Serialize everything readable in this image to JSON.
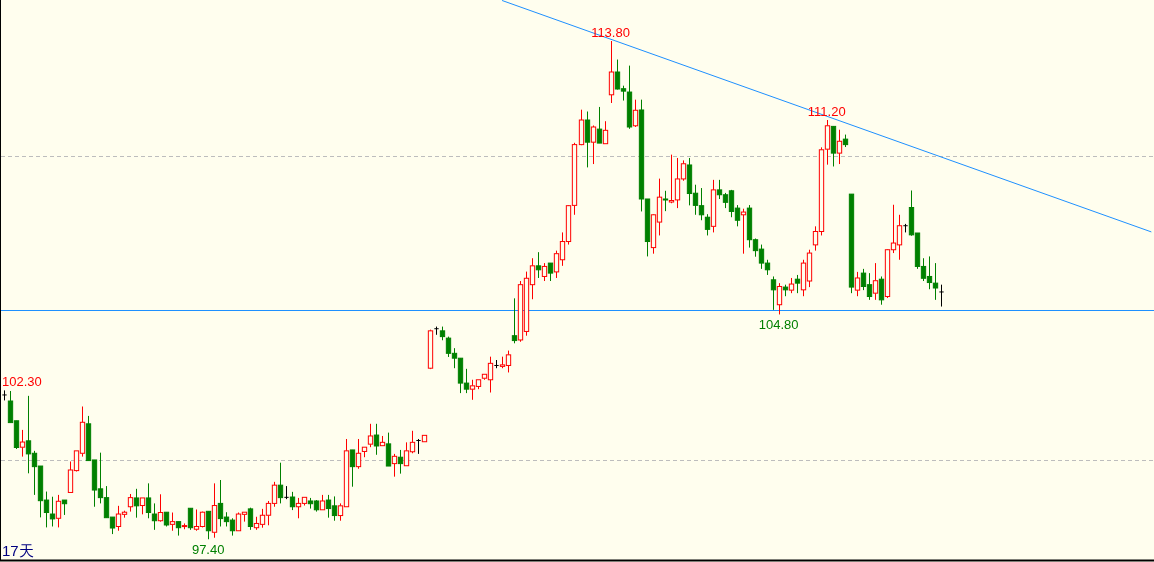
{
  "chart_data": {
    "type": "candlestick",
    "categories": [
      null,
      null,
      null,
      null,
      null,
      null,
      null,
      null,
      null,
      null,
      null,
      null,
      null,
      null,
      null,
      null,
      null,
      null,
      null,
      null,
      null,
      null,
      null,
      null,
      null,
      null,
      null,
      null,
      null,
      null,
      null,
      null,
      null,
      null,
      null,
      null,
      null,
      null,
      null,
      null,
      null,
      null,
      null,
      null,
      null,
      null,
      null,
      null,
      null,
      null,
      null,
      null,
      null,
      null,
      null,
      null,
      null,
      null,
      null,
      null,
      null,
      null,
      null,
      null,
      null,
      null,
      null,
      null,
      null,
      null,
      null,
      null,
      null,
      null,
      null,
      null,
      null,
      null,
      null,
      null,
      null,
      null,
      null,
      null,
      null,
      null,
      null,
      null,
      null,
      null,
      null,
      null,
      null,
      null,
      null,
      null,
      null,
      null,
      null,
      null,
      null,
      null,
      null,
      null,
      null,
      null,
      null,
      null,
      null,
      null,
      null,
      null,
      null,
      null,
      null,
      null,
      null,
      null,
      null,
      null,
      null,
      null,
      null,
      null,
      null,
      null,
      null,
      null,
      null,
      null,
      null,
      null,
      null,
      null,
      null,
      null,
      null,
      null,
      null,
      null,
      null,
      null,
      null,
      null,
      null,
      null,
      null,
      null,
      null,
      null,
      null,
      null,
      null,
      null,
      null,
      null,
      null,
      null,
      null,
      null,
      null,
      null,
      null,
      null,
      null,
      null,
      null,
      null,
      null,
      null,
      null,
      null,
      null,
      null,
      null,
      null,
      null,
      null,
      null,
      null,
      null,
      null,
      null,
      null,
      null,
      null,
      null,
      null,
      null,
      null,
      null,
      null
    ],
    "ohlc": [
      [
        102.15,
        102.3,
        101.97,
        102.15
      ],
      [
        101.95,
        102.28,
        101.24,
        101.24
      ],
      [
        101.3,
        101.3,
        100.37,
        100.42
      ],
      [
        100.43,
        101.0,
        100.12,
        100.6
      ],
      [
        100.64,
        102.12,
        99.57,
        100.21
      ],
      [
        100.23,
        100.31,
        98.86,
        99.79
      ],
      [
        99.81,
        99.81,
        98.12,
        98.67
      ],
      [
        98.69,
        98.97,
        97.79,
        98.28
      ],
      [
        98.23,
        98.8,
        97.82,
        98.07
      ],
      [
        98.09,
        98.86,
        97.79,
        98.65
      ],
      [
        98.69,
        98.69,
        98.2,
        98.57
      ],
      [
        98.94,
        99.96,
        98.94,
        99.68
      ],
      [
        99.66,
        100.31,
        99.63,
        100.31
      ],
      [
        100.23,
        101.77,
        100.12,
        101.25
      ],
      [
        101.2,
        101.46,
        99.99,
        99.99
      ],
      [
        100.01,
        100.01,
        98.47,
        99.02
      ],
      [
        99.06,
        100.25,
        98.58,
        98.77
      ],
      [
        98.77,
        99.15,
        98.11,
        98.11
      ],
      [
        98.13,
        98.13,
        97.57,
        97.77
      ],
      [
        97.82,
        98.5,
        97.68,
        98.23
      ],
      [
        98.22,
        98.34,
        98.11,
        98.29
      ],
      [
        98.47,
        98.89,
        98.31,
        98.77
      ],
      [
        98.76,
        99.06,
        98.11,
        98.5
      ],
      [
        98.51,
        98.76,
        98.22,
        98.76
      ],
      [
        98.76,
        99.24,
        98.09,
        98.28
      ],
      [
        98.23,
        98.58,
        97.71,
        98.01
      ],
      [
        98.01,
        98.88,
        97.98,
        98.28
      ],
      [
        98.29,
        98.29,
        97.82,
        97.87
      ],
      [
        97.89,
        98.28,
        97.68,
        97.98
      ],
      [
        97.98,
        97.98,
        97.52,
        97.78
      ],
      [
        97.82,
        97.92,
        97.73,
        97.85
      ],
      [
        98.42,
        98.42,
        97.71,
        97.78
      ],
      [
        97.73,
        98.38,
        97.68,
        97.82
      ],
      [
        97.82,
        98.31,
        97.79,
        98.29
      ],
      [
        98.32,
        98.32,
        97.4,
        97.68
      ],
      [
        97.63,
        99.24,
        97.45,
        98.51
      ],
      [
        98.58,
        99.35,
        97.82,
        98.08
      ],
      [
        98.13,
        98.29,
        97.82,
        97.98
      ],
      [
        98.03,
        98.09,
        97.52,
        97.68
      ],
      [
        97.68,
        98.28,
        97.68,
        98.23
      ],
      [
        98.22,
        98.29,
        97.98,
        98.29
      ],
      [
        98.4,
        98.44,
        97.71,
        97.82
      ],
      [
        97.78,
        98.14,
        97.71,
        97.92
      ],
      [
        97.89,
        98.4,
        97.78,
        98.19
      ],
      [
        98.19,
        98.66,
        97.86,
        98.58
      ],
      [
        98.58,
        99.29,
        98.47,
        99.18
      ],
      [
        99.18,
        99.92,
        98.58,
        98.77
      ],
      [
        98.78,
        99.15,
        98.72,
        98.78
      ],
      [
        98.79,
        98.96,
        98.36,
        98.47
      ],
      [
        98.47,
        98.76,
        98.09,
        98.58
      ],
      [
        98.58,
        98.78,
        98.51,
        98.78
      ],
      [
        98.66,
        98.76,
        98.41,
        98.57
      ],
      [
        98.66,
        98.69,
        98.31,
        98.37
      ],
      [
        98.37,
        98.86,
        98.37,
        98.66
      ],
      [
        98.69,
        98.86,
        98.11,
        98.41
      ],
      [
        98.5,
        98.81,
        98.01,
        98.18
      ],
      [
        98.18,
        98.58,
        98.01,
        98.5
      ],
      [
        98.47,
        100.7,
        98.47,
        100.31
      ],
      [
        100.34,
        100.34,
        99.13,
        99.79
      ],
      [
        99.79,
        100.7,
        99.72,
        100.23
      ],
      [
        100.29,
        100.43,
        100.1,
        100.43
      ],
      [
        100.53,
        101.2,
        100.43,
        100.8
      ],
      [
        100.83,
        101.2,
        100.18,
        100.47
      ],
      [
        100.48,
        100.8,
        100.48,
        100.59
      ],
      [
        100.54,
        100.91,
        99.81,
        99.81
      ],
      [
        99.89,
        100.21,
        99.46,
        100.13
      ],
      [
        100.1,
        100.34,
        99.56,
        99.89
      ],
      [
        99.82,
        100.59,
        99.82,
        100.31
      ],
      [
        100.28,
        100.97,
        100.23,
        100.59
      ],
      [
        100.65,
        100.7,
        100.21,
        100.65
      ],
      [
        100.61,
        100.82,
        100.61,
        100.82
      ],
      [
        103.03,
        104.3,
        103.0,
        104.26
      ],
      [
        104.33,
        104.4,
        104.13,
        104.33
      ],
      [
        104.26,
        104.4,
        103.95,
        104.07
      ],
      [
        104.02,
        104.07,
        103.4,
        103.52
      ],
      [
        103.52,
        103.69,
        103.03,
        103.36
      ],
      [
        103.36,
        103.36,
        102.21,
        102.54
      ],
      [
        102.54,
        103.01,
        102.21,
        102.34
      ],
      [
        102.34,
        102.65,
        101.99,
        102.45
      ],
      [
        102.43,
        102.65,
        102.34,
        102.65
      ],
      [
        102.7,
        102.83,
        102.65,
        102.83
      ],
      [
        102.65,
        103.41,
        102.23,
        103.19
      ],
      [
        103.12,
        103.3,
        103.03,
        103.12
      ],
      [
        103.09,
        103.41,
        103.03,
        103.14
      ],
      [
        103.12,
        103.61,
        102.89,
        103.47
      ],
      [
        104.1,
        105.33,
        103.85,
        103.94
      ],
      [
        103.96,
        105.9,
        103.9,
        105.78
      ],
      [
        104.24,
        106.21,
        104.1,
        105.99
      ],
      [
        105.78,
        106.65,
        105.3,
        106.4
      ],
      [
        106.4,
        106.85,
        106.0,
        106.27
      ],
      [
        106.05,
        106.49,
        105.9,
        106.38
      ],
      [
        106.49,
        106.49,
        105.9,
        106.16
      ],
      [
        106.2,
        106.9,
        106.0,
        106.8
      ],
      [
        106.6,
        107.5,
        106.4,
        107.2
      ],
      [
        107.2,
        108.4,
        107.1,
        108.38
      ],
      [
        108.39,
        110.45,
        108.08,
        110.39
      ],
      [
        110.39,
        111.54,
        110.37,
        111.2
      ],
      [
        111.2,
        111.48,
        109.64,
        110.47
      ],
      [
        110.47,
        111.02,
        109.75,
        110.97
      ],
      [
        110.9,
        111.63,
        110.44,
        110.44
      ],
      [
        110.42,
        111.16,
        110.42,
        110.86
      ],
      [
        112.03,
        113.8,
        111.76,
        112.78
      ],
      [
        112.78,
        113.19,
        112.2,
        112.22
      ],
      [
        112.23,
        112.33,
        111.84,
        112.15
      ],
      [
        112.12,
        112.99,
        110.91,
        110.97
      ],
      [
        111.01,
        111.87,
        110.97,
        111.52
      ],
      [
        111.53,
        111.87,
        108.19,
        108.6
      ],
      [
        108.6,
        108.6,
        106.71,
        107.2
      ],
      [
        107.0,
        108.1,
        106.8,
        108.08
      ],
      [
        107.84,
        109.27,
        107.4,
        108.66
      ],
      [
        108.6,
        108.87,
        108.2,
        108.57
      ],
      [
        108.5,
        110.06,
        108.46,
        108.55
      ],
      [
        108.57,
        109.95,
        108.3,
        109.26
      ],
      [
        109.26,
        109.87,
        109.2,
        109.76
      ],
      [
        109.72,
        109.95,
        108.39,
        108.78
      ],
      [
        108.79,
        109.07,
        108.08,
        108.39
      ],
      [
        108.38,
        108.96,
        107.9,
        108.08
      ],
      [
        108.0,
        108.1,
        107.4,
        107.6
      ],
      [
        107.7,
        109.23,
        107.5,
        108.9
      ],
      [
        108.9,
        109.23,
        108.6,
        108.74
      ],
      [
        108.74,
        108.8,
        108.3,
        108.49
      ],
      [
        108.87,
        108.9,
        108.0,
        108.19
      ],
      [
        108.3,
        108.4,
        107.7,
        107.9
      ],
      [
        108.08,
        108.28,
        106.8,
        108.17
      ],
      [
        108.3,
        108.4,
        107.0,
        107.26
      ],
      [
        107.26,
        107.3,
        106.7,
        106.9
      ],
      [
        106.95,
        107.1,
        106.3,
        106.49
      ],
      [
        106.49,
        106.6,
        106.1,
        106.27
      ],
      [
        105.94,
        106.05,
        104.95,
        105.61
      ],
      [
        105.12,
        105.83,
        104.8,
        105.72
      ],
      [
        105.7,
        105.78,
        105.4,
        105.61
      ],
      [
        105.6,
        106.0,
        105.5,
        105.8
      ],
      [
        105.96,
        106.1,
        105.5,
        105.83
      ],
      [
        105.61,
        106.6,
        105.4,
        106.49
      ],
      [
        105.9,
        106.93,
        105.7,
        106.82
      ],
      [
        107.09,
        107.7,
        106.9,
        107.53
      ],
      [
        107.53,
        110.3,
        107.4,
        110.22
      ],
      [
        110.24,
        111.2,
        109.73,
        111.01
      ],
      [
        110.99,
        111.0,
        109.67,
        110.11
      ],
      [
        110.11,
        110.88,
        109.75,
        110.5
      ],
      [
        110.57,
        110.72,
        110.31,
        110.39
      ],
      [
        108.76,
        108.76,
        105.5,
        105.7
      ],
      [
        105.6,
        106.2,
        105.4,
        106.0
      ],
      [
        106.16,
        106.3,
        105.6,
        105.72
      ],
      [
        105.78,
        106.16,
        105.28,
        105.39
      ],
      [
        105.5,
        106.49,
        105.28,
        105.91
      ],
      [
        105.96,
        106.05,
        105.12,
        105.28
      ],
      [
        105.39,
        106.95,
        105.34,
        106.93
      ],
      [
        106.93,
        108.41,
        106.82,
        107.15
      ],
      [
        107.09,
        108.08,
        106.6,
        107.72
      ],
      [
        107.72,
        107.78,
        107.5,
        107.72
      ],
      [
        108.32,
        108.88,
        107.39,
        107.42
      ],
      [
        107.48,
        107.48,
        106.3,
        106.38
      ],
      [
        106.38,
        106.65,
        105.9,
        105.99
      ],
      [
        106.05,
        106.71,
        105.63,
        105.85
      ],
      [
        105.83,
        106.49,
        105.28,
        105.67
      ],
      [
        105.54,
        105.78,
        105.06,
        105.54
      ],
      null,
      null,
      null,
      null,
      null,
      null,
      null,
      null,
      null,
      null,
      null,
      null,
      null,
      null,
      null,
      null,
      null,
      null,
      null,
      null,
      null,
      null,
      null,
      null,
      null,
      null,
      null,
      null,
      null,
      null,
      null,
      null,
      null,
      null,
      null
    ],
    "colors": [
      "#000000",
      "#008000",
      "#008000",
      "#ff0000",
      "#008000",
      "#008000",
      "#008000",
      "#008000",
      "#008000",
      "#ff0000",
      "#008000",
      "#ff0000",
      "#ff0000",
      "#ff0000",
      "#008000",
      "#008000",
      "#008000",
      "#008000",
      "#008000",
      "#ff0000",
      "#ff0000",
      "#ff0000",
      "#008000",
      "#ff0000",
      "#008000",
      "#008000",
      "#ff0000",
      "#008000",
      "#ff0000",
      "#008000",
      "#ff0000",
      "#008000",
      "#ff0000",
      "#ff0000",
      "#008000",
      "#ff0000",
      "#008000",
      "#008000",
      "#008000",
      "#ff0000",
      "#ff0000",
      "#008000",
      "#ff0000",
      "#ff0000",
      "#ff0000",
      "#ff0000",
      "#008000",
      "#000000",
      "#008000",
      "#ff0000",
      "#ff0000",
      "#008000",
      "#008000",
      "#ff0000",
      "#008000",
      "#008000",
      "#ff0000",
      "#ff0000",
      "#008000",
      "#ff0000",
      "#ff0000",
      "#ff0000",
      "#008000",
      "#ff0000",
      "#008000",
      "#ff0000",
      "#008000",
      "#ff0000",
      "#ff0000",
      "#000000",
      "#ff0000",
      "#ff0000",
      "#000000",
      "#008000",
      "#008000",
      "#008000",
      "#008000",
      "#008000",
      "#ff0000",
      "#ff0000",
      "#ff0000",
      "#ff0000",
      "#000000",
      "#ff0000",
      "#ff0000",
      "#008000",
      "#ff0000",
      "#ff0000",
      "#ff0000",
      "#008000",
      "#ff0000",
      "#008000",
      "#ff0000",
      "#ff0000",
      "#ff0000",
      "#ff0000",
      "#ff0000",
      "#008000",
      "#ff0000",
      "#008000",
      "#ff0000",
      "#ff0000",
      "#008000",
      "#008000",
      "#008000",
      "#ff0000",
      "#008000",
      "#008000",
      "#ff0000",
      "#ff0000",
      "#008000",
      "#ff0000",
      "#ff0000",
      "#ff0000",
      "#008000",
      "#008000",
      "#008000",
      "#008000",
      "#ff0000",
      "#008000",
      "#008000",
      "#008000",
      "#008000",
      "#ff0000",
      "#008000",
      "#008000",
      "#008000",
      "#008000",
      "#008000",
      "#ff0000",
      "#008000",
      "#ff0000",
      "#008000",
      "#ff0000",
      "#ff0000",
      "#ff0000",
      "#ff0000",
      "#ff0000",
      "#008000",
      "#ff0000",
      "#008000",
      "#008000",
      "#ff0000",
      "#008000",
      "#008000",
      "#ff0000",
      "#008000",
      "#ff0000",
      "#ff0000",
      "#ff0000",
      "#000000",
      "#008000",
      "#008000",
      "#008000",
      "#008000",
      "#008000",
      "#000000",
      null,
      null,
      null,
      null,
      null,
      null,
      null,
      null,
      null,
      null,
      null,
      null,
      null,
      null,
      null,
      null,
      null,
      null,
      null,
      null,
      null,
      null,
      null,
      null,
      null,
      null,
      null,
      null,
      null,
      null,
      null,
      null,
      null,
      null,
      null
    ],
    "series": [
      {
        "type": "line",
        "color": "#1e90ff",
        "values": [
          null,
          null,
          null,
          null,
          null,
          null,
          null,
          null,
          null,
          null,
          null,
          null,
          null,
          null,
          null,
          null,
          null,
          null,
          null,
          null,
          null,
          null,
          null,
          null,
          null,
          null,
          null,
          null,
          null,
          null,
          null,
          null,
          null,
          null,
          null,
          null,
          null,
          null,
          null,
          null,
          null,
          null,
          null,
          null,
          null,
          null,
          null,
          null,
          null,
          null,
          null,
          null,
          null,
          null,
          null,
          null,
          null,
          null,
          null,
          null,
          null,
          null,
          null,
          null,
          null,
          null,
          null,
          null,
          null,
          null,
          null,
          null,
          null,
          null,
          null,
          null,
          null,
          null,
          null,
          null,
          null,
          null,
          null,
          115.13,
          null,
          null,
          null,
          null,
          null,
          null,
          null,
          null,
          null,
          null,
          null,
          null,
          null,
          null,
          null,
          null,
          null,
          null,
          null,
          null,
          null,
          null,
          null,
          null,
          null,
          null,
          null,
          null,
          null,
          null,
          null,
          null,
          null,
          null,
          null,
          null,
          null,
          null,
          null,
          null,
          null,
          null,
          null,
          null,
          null,
          null,
          null,
          null,
          null,
          null,
          null,
          null,
          null,
          null,
          null,
          null,
          null,
          null,
          null,
          null,
          null,
          null,
          null,
          null,
          null,
          null,
          null,
          null,
          null,
          null,
          null,
          null,
          null,
          null,
          null,
          null,
          null,
          null,
          null,
          null,
          null,
          null,
          null,
          null,
          null,
          null,
          null,
          null,
          null,
          null,
          null,
          null,
          null,
          null,
          null,
          null,
          null,
          null,
          null,
          null,
          null,
          null,
          null,
          null,
          null,
          null,
          null,
          107.52
        ]
      }
    ],
    "ylim": [
      96.75,
      115.15
    ],
    "yticks": [
      {
        "value": 100,
        "label": null
      },
      {
        "value": 110,
        "label": null
      }
    ],
    "grid": "y",
    "ref_lines": [
      {
        "axis": "y",
        "value": 104.95,
        "color": "#1e90ff"
      }
    ],
    "annotations": [
      {
        "text": "113.80",
        "y": 113.8
      },
      {
        "text": "111.20",
        "y": 111.2
      },
      {
        "text": "104.80",
        "y": 104.8
      },
      {
        "text": "97.40",
        "y": 97.4
      },
      "102.30",
      "17天"
    ]
  }
}
